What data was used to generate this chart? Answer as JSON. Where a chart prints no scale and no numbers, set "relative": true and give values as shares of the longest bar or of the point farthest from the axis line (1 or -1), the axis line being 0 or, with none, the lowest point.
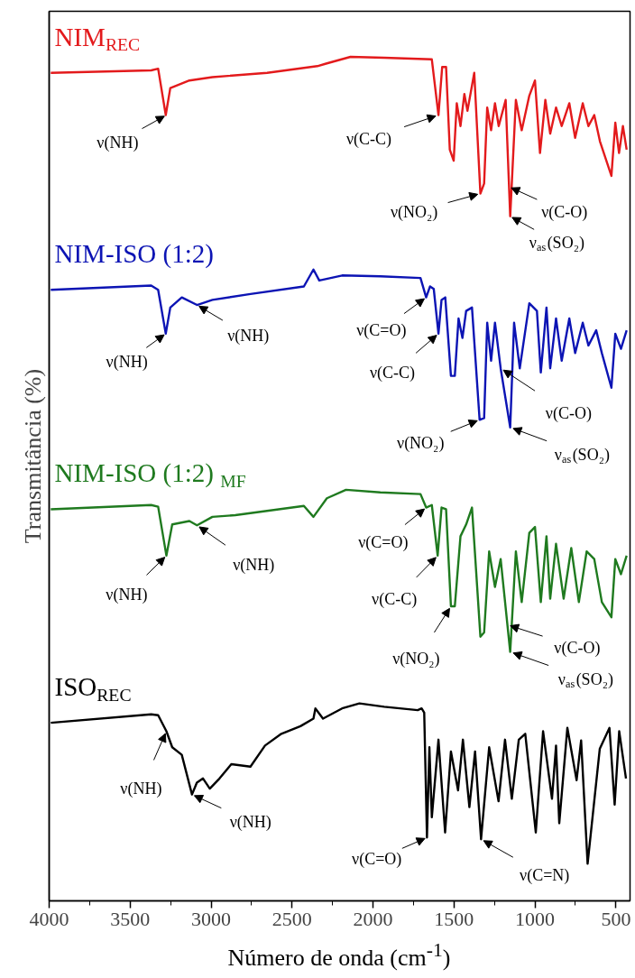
{
  "chart_data": {
    "type": "line",
    "relative": true,
    "xlabel": "Número de onda (cm$^{-1}$)",
    "ylabel": "Transmitância (%)",
    "xlim": [
      4000,
      413
    ],
    "xticks": [
      4000,
      {
        "value": 3750,
        "label": null
      },
      3500,
      {
        "value": 3250,
        "label": null
      },
      3000,
      {
        "value": 2750,
        "label": null
      },
      2500,
      {
        "value": 2250,
        "label": null
      },
      2000,
      {
        "value": 1750,
        "label": null
      },
      1500,
      {
        "value": 1250,
        "label": null
      },
      1000,
      {
        "value": 750,
        "label": null
      },
      500
    ],
    "tick_labels": "x",
    "grid": false,
    "marker": "none",
    "line_style": "solid",
    "series": [
      {
        "name": "NIM$_{REC}$",
        "color": "#e31a1c",
        "x": [
          3990,
          3370,
          3327,
          3280,
          3252,
          3134,
          2992,
          2654,
          2344,
          2290,
          2139,
          1931,
          1637,
          1596,
          1573,
          1549,
          1526,
          1502,
          1483,
          1460,
          1436,
          1417,
          1375,
          1337,
          1314,
          1295,
          1271,
          1247,
          1224,
          1181,
          1153,
          1118,
          1082,
          1035,
          1000,
          969,
          936,
          906,
          870,
          835,
          788,
          752,
          705,
          670,
          634,
          599,
          528,
          504,
          481,
          457,
          434
        ],
        "values": [
          0.981,
          0.984,
          0.986,
          0.931,
          0.963,
          0.972,
          0.976,
          0.981,
          0.989,
          0.992,
          1.0,
          0.999,
          0.997,
          0.931,
          0.988,
          0.988,
          0.89,
          0.877,
          0.945,
          0.918,
          0.956,
          0.936,
          0.981,
          0.838,
          0.85,
          0.94,
          0.913,
          0.945,
          0.918,
          0.949,
          0.811,
          0.949,
          0.913,
          0.954,
          0.972,
          0.886,
          0.949,
          0.909,
          0.94,
          0.918,
          0.945,
          0.904,
          0.945,
          0.918,
          0.931,
          0.9,
          0.859,
          0.922,
          0.886,
          0.918,
          0.89
        ]
      },
      {
        "name": "NIM-ISO (1:2)",
        "color": "#0c14b4",
        "x": [
          3990,
          3370,
          3327,
          3280,
          3252,
          3181,
          3087,
          2992,
          2757,
          2427,
          2368,
          2332,
          2191,
          1955,
          1707,
          1672,
          1648,
          1625,
          1596,
          1577,
          1554,
          1519,
          1495,
          1472,
          1448,
          1425,
          1389,
          1342,
          1314,
          1295,
          1271,
          1247,
          1212,
          1153,
          1129,
          1094,
          1035,
          988,
          964,
          929,
          906,
          870,
          835,
          788,
          752,
          705,
          670,
          622,
          587,
          528,
          504,
          469,
          434
        ],
        "values": [
          0.724,
          0.729,
          0.724,
          0.672,
          0.703,
          0.715,
          0.706,
          0.712,
          0.719,
          0.728,
          0.748,
          0.735,
          0.741,
          0.74,
          0.738,
          0.715,
          0.728,
          0.725,
          0.672,
          0.712,
          0.715,
          0.622,
          0.622,
          0.69,
          0.667,
          0.699,
          0.703,
          0.57,
          0.572,
          0.685,
          0.64,
          0.685,
          0.631,
          0.561,
          0.685,
          0.631,
          0.708,
          0.699,
          0.626,
          0.703,
          0.631,
          0.69,
          0.64,
          0.69,
          0.649,
          0.685,
          0.658,
          0.676,
          0.649,
          0.608,
          0.672,
          0.654,
          0.676
        ]
      },
      {
        "name": "NIM-ISO (1:2) $_{MF}$",
        "color": "#1f7a1f",
        "x": [
          3990,
          3370,
          3327,
          3276,
          3240,
          3134,
          3087,
          2992,
          2851,
          2427,
          2368,
          2285,
          2167,
          1955,
          1707,
          1672,
          1637,
          1601,
          1577,
          1549,
          1519,
          1495,
          1460,
          1425,
          1389,
          1337,
          1314,
          1283,
          1247,
          1212,
          1153,
          1118,
          1082,
          1035,
          1000,
          964,
          929,
          906,
          870,
          823,
          776,
          729,
          681,
          634,
          587,
          528,
          504,
          469,
          434
        ],
        "values": [
          0.464,
          0.469,
          0.467,
          0.409,
          0.446,
          0.45,
          0.445,
          0.455,
          0.457,
          0.468,
          0.455,
          0.477,
          0.487,
          0.484,
          0.482,
          0.466,
          0.469,
          0.409,
          0.466,
          0.464,
          0.349,
          0.349,
          0.432,
          0.446,
          0.466,
          0.313,
          0.318,
          0.414,
          0.372,
          0.405,
          0.295,
          0.414,
          0.354,
          0.436,
          0.443,
          0.354,
          0.432,
          0.358,
          0.423,
          0.358,
          0.418,
          0.354,
          0.414,
          0.405,
          0.354,
          0.336,
          0.405,
          0.387,
          0.409
        ]
      },
      {
        "name": "ISO$_{REC}$",
        "color": "#000000",
        "x": [
          3990,
          3370,
          3327,
          3276,
          3240,
          3181,
          3118,
          3088,
          3050,
          3008,
          2948,
          2875,
          2757,
          2667,
          2566,
          2448,
          2368,
          2356,
          2309,
          2191,
          2084,
          1931,
          1724,
          1700,
          1684,
          1667,
          1652,
          1637,
          1596,
          1555,
          1519,
          1475,
          1445,
          1405,
          1370,
          1333,
          1283,
          1225,
          1185,
          1143,
          1100,
          1060,
          995,
          950,
          895,
          870,
          850,
          800,
          743,
          715,
          675,
          600,
          540,
          508,
          480,
          438
        ],
        "values": [
          0.211,
          0.221,
          0.22,
          0.201,
          0.182,
          0.173,
          0.126,
          0.14,
          0.145,
          0.133,
          0.145,
          0.162,
          0.159,
          0.184,
          0.198,
          0.207,
          0.216,
          0.228,
          0.216,
          0.228,
          0.234,
          0.23,
          0.226,
          0.228,
          0.223,
          0.075,
          0.182,
          0.099,
          0.191,
          0.081,
          0.177,
          0.131,
          0.191,
          0.111,
          0.177,
          0.073,
          0.182,
          0.118,
          0.191,
          0.121,
          0.191,
          0.198,
          0.081,
          0.201,
          0.121,
          0.184,
          0.092,
          0.205,
          0.143,
          0.19,
          0.044,
          0.18,
          0.205,
          0.114,
          0.201,
          0.145
        ]
      }
    ],
    "annotations": [
      {
        "text": "ν(NH)",
        "x": 3276,
        "y": 0.931
      },
      {
        "text": "ν(C-C)",
        "x": 1596,
        "y": 0.931
      },
      {
        "text": "ν(NO₂)",
        "x": 1337,
        "y": 0.838
      },
      {
        "text": "ν(C-O)",
        "x": 1160,
        "y": 0.846
      },
      {
        "text": "ν$_{as}$(SO₂)",
        "x": 1153,
        "y": 0.811
      },
      {
        "text": "ν(NH)",
        "x": 3280,
        "y": 0.672
      },
      {
        "text": "ν(NH)",
        "x": 3087,
        "y": 0.706
      },
      {
        "text": "ν(C=O)",
        "x": 1672,
        "y": 0.715
      },
      {
        "text": "ν(C-C)",
        "x": 1596,
        "y": 0.672
      },
      {
        "text": "ν(NO₂)",
        "x": 1342,
        "y": 0.57
      },
      {
        "text": "ν(C-O)",
        "x": 1212,
        "y": 0.631
      },
      {
        "text": "ν$_{as}$(SO₂)",
        "x": 1153,
        "y": 0.561
      },
      {
        "text": "ν(NH)",
        "x": 3276,
        "y": 0.409
      },
      {
        "text": "ν(NH)",
        "x": 3087,
        "y": 0.445
      },
      {
        "text": "ν(C=O)",
        "x": 1672,
        "y": 0.466
      },
      {
        "text": "ν(C-C)",
        "x": 1601,
        "y": 0.409
      },
      {
        "text": "ν(NO₂)",
        "x": 1519,
        "y": 0.349
      },
      {
        "text": "ν(C-O)",
        "x": 1170,
        "y": 0.327
      },
      {
        "text": "ν$_{as}$(SO₂)",
        "x": 1153,
        "y": 0.295
      },
      {
        "text": "ν(NH)",
        "x": 3276,
        "y": 0.201
      },
      {
        "text": "ν(NH)",
        "x": 3118,
        "y": 0.126
      },
      {
        "text": "ν(C=O)",
        "x": 1667,
        "y": 0.075
      },
      {
        "text": "ν(C=N)",
        "x": 1333,
        "y": 0.073
      }
    ]
  }
}
